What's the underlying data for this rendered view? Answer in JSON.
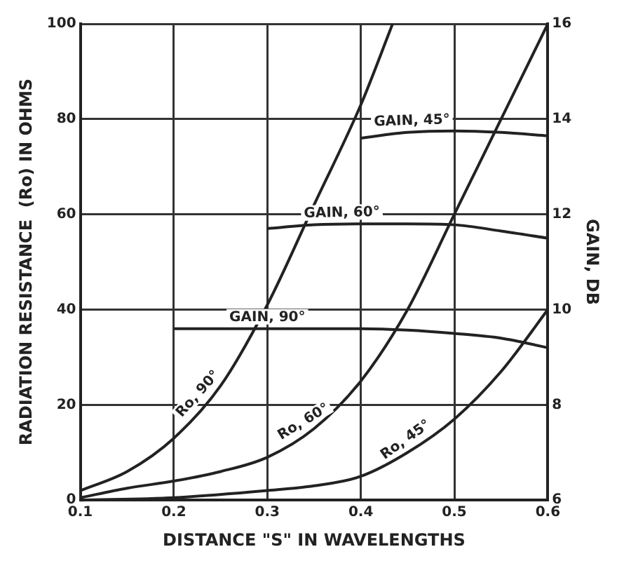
{
  "chart_data": {
    "type": "line",
    "xlabel": "DISTANCE \"S\" IN WAVELENGTHS",
    "ylabel": "RADIATION RESISTANCE  (Ro) IN OHMS",
    "y2label": "GAIN, DB",
    "xlim": [
      0.1,
      0.6
    ],
    "xticks": [
      0.1,
      0.2,
      0.3,
      0.4,
      0.5,
      0.6
    ],
    "ylim": [
      0,
      100
    ],
    "yticks": [
      0,
      20,
      40,
      60,
      80,
      100
    ],
    "y2lim": [
      6,
      16
    ],
    "y2ticks": [
      6,
      8,
      10,
      12,
      14,
      16
    ],
    "grid": true,
    "legend": false,
    "marker": "none",
    "line_style": "solid",
    "series": [
      {
        "name": "Ro, 90°",
        "color": "#222222",
        "x": [
          0.1,
          0.15,
          0.2,
          0.25,
          0.3,
          0.35,
          0.4,
          0.434
        ],
        "values": [
          2,
          6,
          13,
          24,
          41,
          62,
          83,
          100
        ]
      },
      {
        "name": "Ro, 60°",
        "color": "#222222",
        "x": [
          0.1,
          0.15,
          0.2,
          0.25,
          0.3,
          0.35,
          0.4,
          0.45,
          0.5,
          0.55,
          0.6
        ],
        "values": [
          0.5,
          2.5,
          4,
          6,
          9,
          15,
          25,
          40,
          60,
          80,
          100
        ]
      },
      {
        "name": "Ro, 45°",
        "color": "#222222",
        "x": [
          0.1,
          0.2,
          0.3,
          0.35,
          0.4,
          0.45,
          0.5,
          0.55,
          0.6
        ],
        "values": [
          0,
          0.5,
          2,
          3,
          5,
          10,
          17,
          27,
          40
        ]
      },
      {
        "name": "GAIN, 45°",
        "color": "#222222",
        "axis": "y2",
        "x": [
          0.4,
          0.45,
          0.5,
          0.55,
          0.6
        ],
        "values": [
          13.6,
          13.72,
          13.75,
          13.72,
          13.65
        ]
      },
      {
        "name": "GAIN, 60°",
        "color": "#222222",
        "axis": "y2",
        "x": [
          0.3,
          0.35,
          0.4,
          0.45,
          0.5,
          0.55,
          0.6
        ],
        "values": [
          11.7,
          11.78,
          11.8,
          11.8,
          11.78,
          11.65,
          11.5
        ]
      },
      {
        "name": "GAIN, 90°",
        "color": "#222222",
        "axis": "y2",
        "x": [
          0.2,
          0.3,
          0.4,
          0.45,
          0.5,
          0.55,
          0.6
        ],
        "values": [
          9.6,
          9.6,
          9.6,
          9.57,
          9.5,
          9.4,
          9.2
        ]
      }
    ]
  }
}
